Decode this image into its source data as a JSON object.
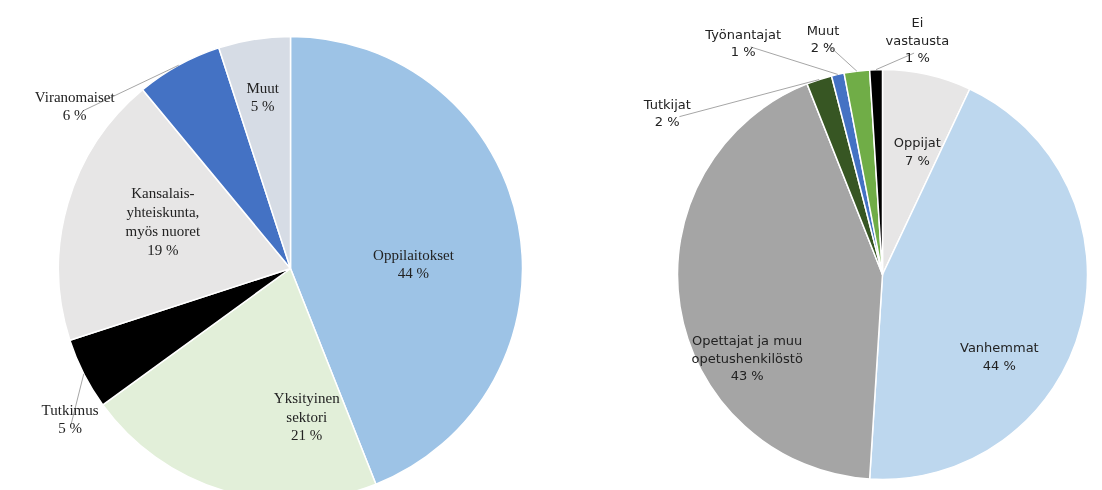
{
  "chart_data": [
    {
      "type": "pie",
      "categories": [
        "Oppilaitokset",
        "Yksityinen\nsektori",
        "Tutkimus",
        "Kansalais-\nyhteiskunta,\nmyös nuoret",
        "Viranomaiset",
        "Muut"
      ],
      "values": [
        44,
        21,
        5,
        19,
        6,
        5
      ],
      "value_labels": [
        "44 %",
        "21 %",
        "5 %",
        "19 %",
        "6 %",
        "5 %"
      ],
      "colors": [
        "#9dc3e6",
        "#e2efd9",
        "#000000",
        "#e7e6e6",
        "#4472c4",
        "#d6dce5"
      ]
    },
    {
      "type": "pie",
      "categories": [
        "Oppijat",
        "Vanhemmat",
        "Opettajat ja muu\nopetushenkilöstö",
        "Tutkijat",
        "Työnantajat",
        "Muut",
        "Ei\nvastausta"
      ],
      "values": [
        7,
        44,
        43,
        2,
        1,
        2,
        1
      ],
      "value_labels": [
        "7 %",
        "44 %",
        "43 %",
        "2 %",
        "1 %",
        "2 %",
        "1 %"
      ],
      "colors": [
        "#e7e6e6",
        "#bdd7ee",
        "#a5a5a5",
        "#375623",
        "#4472c4",
        "#70ad47",
        "#000000"
      ]
    }
  ]
}
